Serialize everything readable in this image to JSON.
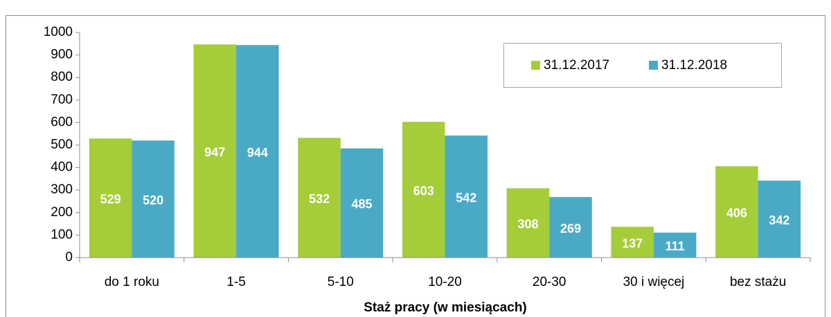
{
  "chart_data": {
    "type": "bar",
    "x_label": "Staż pracy (w miesiącach)",
    "categories": [
      "do 1 roku",
      "1-5",
      "5-10",
      "10-20",
      "20-30",
      "30 i więcej",
      "bez stażu"
    ],
    "series": [
      {
        "name": "31.12.2017",
        "color": "#a5cd3a",
        "values": [
          529,
          947,
          532,
          603,
          308,
          137,
          406
        ]
      },
      {
        "name": "31.12.2018",
        "color": "#4aaac6",
        "values": [
          520,
          944,
          485,
          542,
          269,
          111,
          342
        ]
      }
    ],
    "ylim": [
      0,
      1000
    ],
    "yticks": [
      0,
      100,
      200,
      300,
      400,
      500,
      600,
      700,
      800,
      900,
      1000
    ],
    "grid": false,
    "legend": "upper right"
  }
}
